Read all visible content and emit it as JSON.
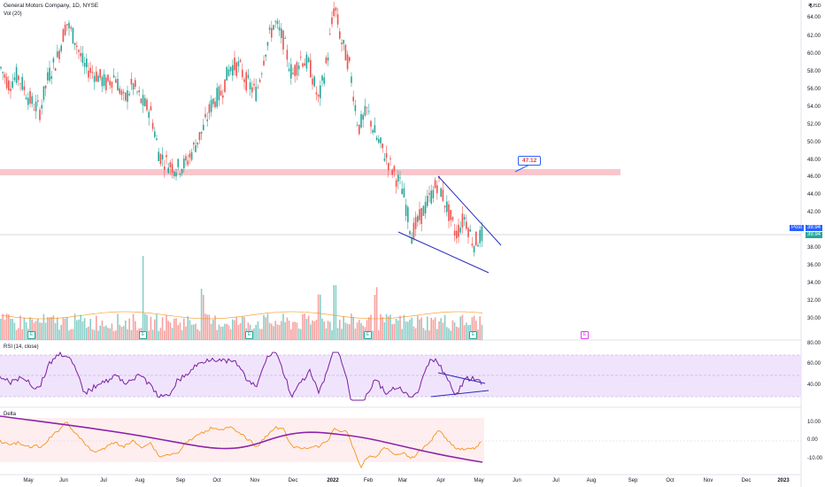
{
  "header": {
    "title": "General Motors Company, 1D, NYSE",
    "volume_label": "Vol (20)",
    "currency": "USD",
    "currency_icon": "currency-icon"
  },
  "price_axis": [
    "64.00",
    "62.00",
    "60.00",
    "58.00",
    "56.00",
    "54.00",
    "52.00",
    "50.00",
    "48.00",
    "46.00",
    "44.00",
    "42.00",
    "38.00",
    "36.00",
    "34.00",
    "32.00",
    "30.00"
  ],
  "price_tags": {
    "post_label": "Post",
    "post_value": "39.94",
    "last_value": "39.94"
  },
  "callout_value": "47.12",
  "earnings_marker": "E",
  "rsi": {
    "label": "RSI (14, close)",
    "axis": [
      "80.00",
      "60.00",
      "40.00"
    ]
  },
  "delta": {
    "label": "Delta",
    "axis": [
      "10.00",
      "0.00",
      "-10.00"
    ]
  },
  "time_axis": [
    "May",
    "Jun",
    "Jul",
    "Aug",
    "Sep",
    "Oct",
    "Nov",
    "Dec",
    "2022",
    "Feb",
    "Mar",
    "Apr",
    "May",
    "Jun",
    "Jul",
    "Aug",
    "Sep",
    "Oct",
    "Nov",
    "Dec",
    "2023"
  ],
  "colors": {
    "up": "#26a69a",
    "down": "#ef5350",
    "trendline": "#2a2eb8",
    "rsi_line": "#7b1fa2",
    "rsi_band": "#e9d8fb",
    "resistance_zone": "#f7c7cc",
    "delta_fast": "#f7931a",
    "delta_slow": "#8e24aa",
    "post_tag": "#2962ff"
  }
}
